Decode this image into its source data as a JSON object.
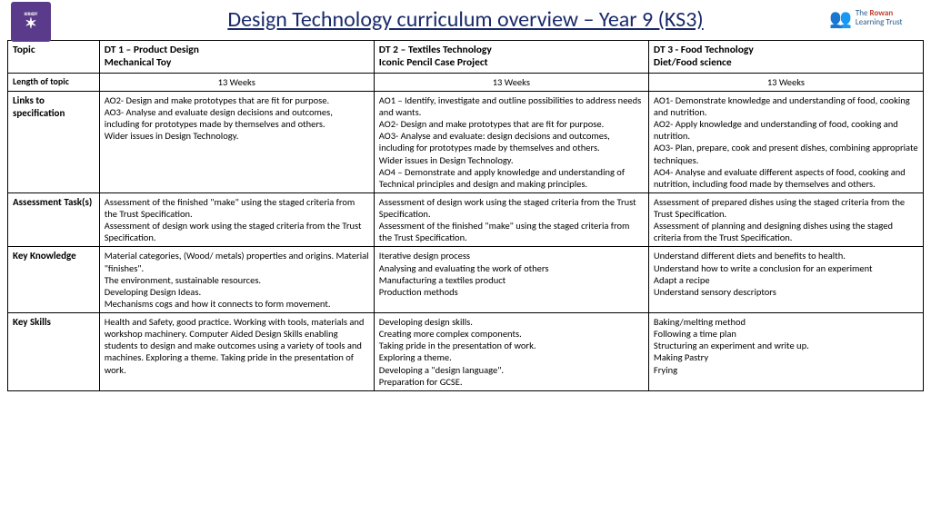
{
  "title": "Design Technology curriculum overview – Year 9 (KS3)",
  "logo_left_top": "KIRKBY",
  "logo_right_line1": "The",
  "logo_right_line2": "Rowan",
  "logo_right_line3": "Learning Trust",
  "columns": {
    "topic_label": "Topic",
    "dt1": {
      "title": "DT 1 – Product Design",
      "subtitle": "Mechanical Toy"
    },
    "dt2": {
      "title": "DT 2 – Textiles Technology",
      "subtitle": "Iconic Pencil Case Project"
    },
    "dt3": {
      "title": "DT 3 - Food Technology",
      "subtitle": "Diet/Food science"
    }
  },
  "rows": {
    "length": {
      "label": "Length of topic",
      "dt1": "13 Weeks",
      "dt2": "13 Weeks",
      "dt3": "13 Weeks"
    },
    "links": {
      "label": "Links to specification",
      "dt1": "AO2- Design and make prototypes that are fit for purpose.\nAO3- Analyse and evaluate design decisions and outcomes, including for prototypes made by themselves and others.\nWider issues in Design Technology.",
      "dt2": "AO1 – Identify, investigate and outline possibilities to address needs and wants.\nAO2- Design and make prototypes that are fit for purpose.\nAO3- Analyse and evaluate: design decisions and outcomes, including for prototypes made by themselves and others.\nWider issues in Design Technology.\nAO4 – Demonstrate and apply knowledge and understanding of Technical principles and design and making principles.",
      "dt3": "AO1- Demonstrate knowledge and understanding of food, cooking and nutrition.\nAO2- Apply knowledge and understanding of food, cooking and nutrition.\nAO3- Plan, prepare, cook and present dishes, combining appropriate techniques.\nAO4- Analyse and evaluate different aspects of food, cooking and nutrition, including food made by themselves and others."
    },
    "assessment": {
      "label": "Assessment Task(s)",
      "dt1": "Assessment of the finished \"make\" using the staged criteria from the Trust Specification.\nAssessment of design work using the staged criteria from the Trust Specification.",
      "dt2": "Assessment of design work using the staged criteria from the Trust Specification.\nAssessment of the finished \"make\" using the staged criteria from the Trust Specification.",
      "dt3": "Assessment of prepared dishes using the staged criteria from the Trust Specification.\nAssessment of planning and designing dishes using the staged criteria from the Trust Specification."
    },
    "knowledge": {
      "label": "Key Knowledge",
      "dt1": "Material categories, (Wood/ metals) properties and origins. Material \"finishes\".\nThe environment, sustainable resources.\nDeveloping Design Ideas.\nMechanisms cogs and how it connects to form movement.",
      "dt2": "Iterative design process\nAnalysing and evaluating the work of others\nManufacturing a textiles product\nProduction methods",
      "dt3": "Understand different diets and benefits to health.\nUnderstand how to write a conclusion for an experiment\nAdapt a recipe\nUnderstand sensory descriptors"
    },
    "skills": {
      "label": "Key Skills",
      "dt1": "Health and Safety, good practice. Working with tools, materials and workshop machinery. Computer Aided Design Skills enabling students to design and make outcomes using a variety of tools and machines. Exploring a theme. Taking pride in the presentation of work.",
      "dt2": "Developing design skills.\nCreating more complex components.\nTaking pride in the presentation of work.\nExploring a theme.\nDeveloping a \"design language\".\nPreparation for GCSE.",
      "dt3": "Baking/melting method\nFollowing a time plan\nStructuring an experiment and write up.\nMaking Pastry\nFrying"
    }
  }
}
